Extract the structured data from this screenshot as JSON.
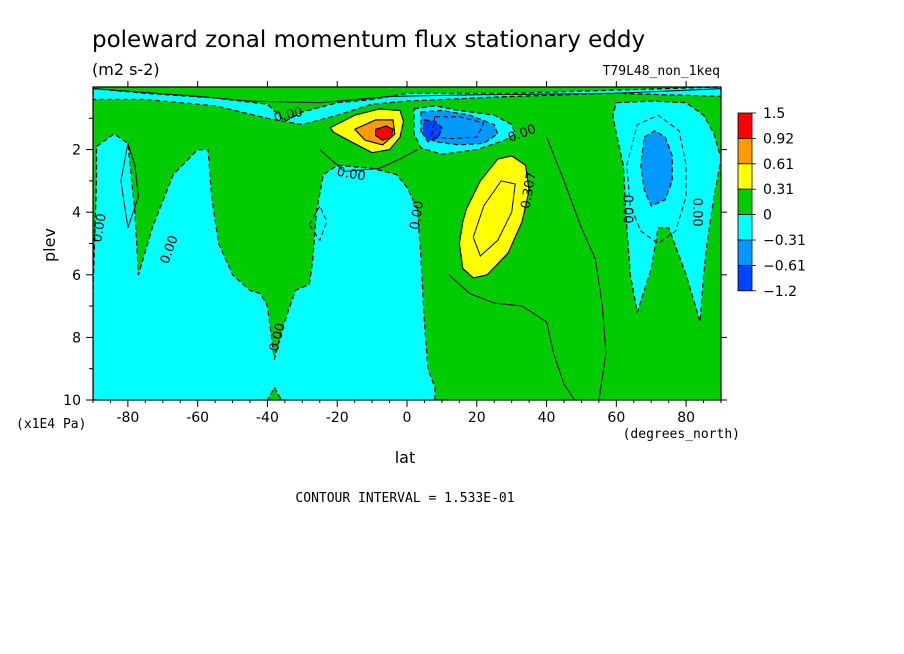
{
  "chart_data": {
    "type": "contour",
    "title": "poleward zonal momentum flux stationary eddy",
    "units": "(m2 s-2)",
    "experiment": "T79L48_non_1keq",
    "xlabel": "lat",
    "xunits": "(degrees_north)",
    "ylabel": "plev",
    "yunits": "(x1E4 Pa)",
    "xlim": [
      -90,
      90
    ],
    "ylim": [
      0,
      10
    ],
    "y_inverted": true,
    "x_ticks": [
      -80,
      -60,
      -40,
      -20,
      0,
      20,
      40,
      60,
      80
    ],
    "x_tick_labels": [
      "-80",
      "-60",
      "-40",
      "-20",
      "0",
      "20",
      "40",
      "60",
      "80"
    ],
    "y_ticks": [
      2,
      4,
      6,
      8,
      10
    ],
    "y_tick_labels": [
      "2",
      "4",
      "6",
      "8",
      "10"
    ],
    "contour_interval_text": "CONTOUR INTERVAL = 1.533E-01",
    "colorbar": {
      "labels": [
        "1.5",
        "0.92",
        "0.61",
        "0.31",
        "0",
        "−0.31",
        "−0.61",
        "−1.2"
      ],
      "colors": [
        "#ff0000",
        "#ff9900",
        "#ffff00",
        "#00cc00",
        "#00ffff",
        "#0099ff",
        "#0044ff"
      ]
    },
    "contour_labels": [
      {
        "text": "0.00",
        "lat": -34,
        "p": 0.9,
        "rot": -12
      },
      {
        "text": "0.00",
        "lat": -16,
        "p": 2.8,
        "rot": 10
      },
      {
        "text": "0.00",
        "lat": -68,
        "p": 5.2,
        "rot": -70
      },
      {
        "text": "0.00",
        "lat": -88,
        "p": 4.5,
        "rot": -80
      },
      {
        "text": "0.00",
        "lat": -37,
        "p": 8.0,
        "rot": -75
      },
      {
        "text": "0.00",
        "lat": 3,
        "p": 4.1,
        "rot": -80
      },
      {
        "text": "0.00",
        "lat": 33,
        "p": 1.5,
        "rot": -20
      },
      {
        "text": "0.00",
        "lat": 63,
        "p": 3.9,
        "rot": 90
      },
      {
        "text": "0.00",
        "lat": 83,
        "p": 4.0,
        "rot": 90
      },
      {
        "text": "0.307",
        "lat": 35,
        "p": 3.3,
        "rot": -80
      }
    ],
    "color_regions": [
      {
        "level": "negative",
        "color": "#00ffff",
        "polygon": [
          [
            -90,
            0.05
          ],
          [
            -75,
            0.2
          ],
          [
            -55,
            0.35
          ],
          [
            -40,
            0.55
          ],
          [
            -35,
            1.1
          ],
          [
            -30,
            0.8
          ],
          [
            -20,
            0.5
          ],
          [
            -10,
            0.4
          ],
          [
            0,
            0.2
          ],
          [
            30,
            0.2
          ],
          [
            60,
            0.1
          ],
          [
            90,
            0.0
          ],
          [
            90,
            0.3
          ],
          [
            60,
            0.2
          ],
          [
            30,
            0.3
          ],
          [
            0,
            0.45
          ],
          [
            -10,
            0.55
          ],
          [
            -20,
            0.9
          ],
          [
            -30,
            1.2
          ],
          [
            -40,
            1.0
          ],
          [
            -55,
            0.6
          ],
          [
            -75,
            0.4
          ],
          [
            -90,
            0.4
          ]
        ]
      },
      {
        "level": "negative",
        "color": "#00ffff",
        "polygon": [
          [
            -89,
            1.9
          ],
          [
            -84,
            1.5
          ],
          [
            -80,
            1.8
          ],
          [
            -78,
            4.0
          ],
          [
            -77,
            6.0
          ],
          [
            -73,
            4.5
          ],
          [
            -67,
            2.8
          ],
          [
            -60,
            2.0
          ],
          [
            -57,
            2.0
          ],
          [
            -56,
            3.5
          ],
          [
            -54,
            5.0
          ],
          [
            -50,
            6.0
          ],
          [
            -45,
            6.5
          ],
          [
            -42,
            6.6
          ],
          [
            -40,
            7.0
          ],
          [
            -38,
            8.7
          ],
          [
            -36,
            7.8
          ],
          [
            -32,
            6.5
          ],
          [
            -28,
            6.3
          ],
          [
            -27,
            5.5
          ],
          [
            -26,
            4.0
          ],
          [
            -24,
            2.8
          ],
          [
            -20,
            2.5
          ],
          [
            -10,
            2.6
          ],
          [
            -3,
            2.8
          ],
          [
            0,
            3.2
          ],
          [
            3,
            3.9
          ],
          [
            4,
            5.5
          ],
          [
            5,
            7.5
          ],
          [
            6,
            9.0
          ],
          [
            8,
            9.6
          ],
          [
            8,
            10
          ],
          [
            -36,
            10
          ],
          [
            -38,
            9.6
          ],
          [
            -40,
            10
          ],
          [
            -90,
            10
          ],
          [
            -90,
            6.5
          ],
          [
            -89,
            3.0
          ]
        ]
      },
      {
        "level": "negative",
        "color": "#00ffff",
        "polygon": [
          [
            2,
            0.7
          ],
          [
            8,
            0.6
          ],
          [
            15,
            0.75
          ],
          [
            25,
            0.9
          ],
          [
            30,
            1.2
          ],
          [
            31,
            1.5
          ],
          [
            28,
            1.7
          ],
          [
            20,
            2.0
          ],
          [
            10,
            2.15
          ],
          [
            4,
            1.95
          ],
          [
            2,
            1.5
          ]
        ]
      },
      {
        "level": "negative",
        "color": "#00ffff",
        "polygon": [
          [
            60,
            0.5
          ],
          [
            70,
            0.45
          ],
          [
            80,
            0.5
          ],
          [
            85,
            0.9
          ],
          [
            88,
            1.5
          ],
          [
            90,
            2.3
          ],
          [
            88,
            3.5
          ],
          [
            86,
            5.0
          ],
          [
            85,
            6.0
          ],
          [
            84,
            7.5
          ],
          [
            80,
            6.0
          ],
          [
            75,
            4.5
          ],
          [
            72,
            4.5
          ],
          [
            70,
            5.8
          ],
          [
            66,
            7.2
          ],
          [
            64,
            6.0
          ],
          [
            63,
            4.5
          ],
          [
            62,
            2.5
          ],
          [
            60,
            1.5
          ],
          [
            59,
            0.9
          ]
        ]
      },
      {
        "level": "negative",
        "color": "#0099ff",
        "polygon": [
          [
            4,
            0.8
          ],
          [
            10,
            0.75
          ],
          [
            18,
            0.9
          ],
          [
            25,
            1.2
          ],
          [
            26,
            1.5
          ],
          [
            22,
            1.8
          ],
          [
            15,
            1.85
          ],
          [
            8,
            1.75
          ],
          [
            4,
            1.45
          ]
        ]
      },
      {
        "level": "negative",
        "color": "#0099ff",
        "polygon": [
          [
            68,
            1.6
          ],
          [
            71,
            1.4
          ],
          [
            74,
            1.6
          ],
          [
            76,
            2.2
          ],
          [
            76,
            3.0
          ],
          [
            74,
            3.6
          ],
          [
            70,
            3.8
          ],
          [
            68,
            3.3
          ],
          [
            67,
            2.5
          ]
        ]
      },
      {
        "level": "negative",
        "color": "#0044ff",
        "polygon": [
          [
            5,
            1.05
          ],
          [
            8,
            1.1
          ],
          [
            10,
            1.3
          ],
          [
            9,
            1.6
          ],
          [
            6,
            1.75
          ],
          [
            4.5,
            1.5
          ]
        ]
      },
      {
        "level": "positive",
        "color": "#ffff00",
        "polygon": [
          [
            -22,
            1.3
          ],
          [
            -15,
            0.9
          ],
          [
            -8,
            0.7
          ],
          [
            -2,
            0.75
          ],
          [
            -1,
            1.1
          ],
          [
            -2,
            1.6
          ],
          [
            -5,
            2.0
          ],
          [
            -10,
            2.1
          ],
          [
            -16,
            1.75
          ],
          [
            -21,
            1.45
          ]
        ]
      },
      {
        "level": "positive",
        "color": "#ff9900",
        "polygon": [
          [
            -15,
            1.35
          ],
          [
            -9,
            1.05
          ],
          [
            -4,
            1.05
          ],
          [
            -3.5,
            1.5
          ],
          [
            -7,
            1.85
          ],
          [
            -12,
            1.7
          ]
        ]
      },
      {
        "level": "positive",
        "color": "#ff0000",
        "polygon": [
          [
            -9,
            1.35
          ],
          [
            -6,
            1.25
          ],
          [
            -4,
            1.35
          ],
          [
            -4.5,
            1.6
          ],
          [
            -7,
            1.7
          ],
          [
            -9,
            1.55
          ]
        ]
      },
      {
        "level": "positive",
        "color": "#ffff00",
        "polygon": [
          [
            17,
            3.9
          ],
          [
            21,
            3.0
          ],
          [
            26,
            2.3
          ],
          [
            30,
            2.2
          ],
          [
            34,
            2.5
          ],
          [
            35,
            3.3
          ],
          [
            33,
            4.3
          ],
          [
            29,
            5.3
          ],
          [
            23,
            6.0
          ],
          [
            19,
            6.1
          ],
          [
            16,
            5.8
          ],
          [
            15,
            5.0
          ],
          [
            16,
            4.3
          ]
        ]
      }
    ],
    "contour_lines": [
      {
        "style": "dashed",
        "points": [
          [
            -28,
            4.4
          ],
          [
            -25,
            3.8
          ],
          [
            -23,
            4.3
          ],
          [
            -25,
            4.9
          ],
          [
            -28,
            4.4
          ]
        ]
      },
      {
        "style": "dashed",
        "points": [
          [
            63,
            2.5
          ],
          [
            66,
            1.2
          ],
          [
            72,
            0.9
          ],
          [
            78,
            1.4
          ],
          [
            80,
            2.5
          ],
          [
            80,
            3.5
          ],
          [
            77,
            4.6
          ],
          [
            72,
            5.0
          ],
          [
            67,
            4.6
          ],
          [
            64,
            3.8
          ],
          [
            63,
            2.5
          ]
        ]
      },
      {
        "style": "dashed",
        "points": [
          [
            8,
            0.95
          ],
          [
            15,
            0.95
          ],
          [
            22,
            1.15
          ],
          [
            20,
            1.6
          ],
          [
            13,
            1.65
          ],
          [
            7,
            1.6
          ],
          [
            8,
            0.95
          ]
        ]
      },
      {
        "style": "solid",
        "points": [
          [
            19,
            4.8
          ],
          [
            22,
            3.8
          ],
          [
            27,
            3.0
          ],
          [
            31,
            3.1
          ],
          [
            30,
            4.0
          ],
          [
            26,
            4.9
          ],
          [
            21,
            5.4
          ],
          [
            19,
            4.8
          ]
        ]
      },
      {
        "style": "solid",
        "points": [
          [
            12,
            6.0
          ],
          [
            18,
            6.6
          ],
          [
            25,
            6.9
          ],
          [
            33,
            7.0
          ],
          [
            40,
            7.5
          ],
          [
            42,
            8.5
          ],
          [
            45,
            9.5
          ],
          [
            48,
            10
          ]
        ]
      },
      {
        "style": "solid",
        "points": [
          [
            40,
            1.6
          ],
          [
            45,
            3.0
          ],
          [
            50,
            4.5
          ],
          [
            54,
            5.5
          ],
          [
            56,
            7.0
          ],
          [
            57,
            8.5
          ],
          [
            55,
            10
          ]
        ]
      },
      {
        "style": "solid",
        "points": [
          [
            -80,
            1.8
          ],
          [
            -82,
            3.0
          ],
          [
            -80,
            4.5
          ],
          [
            -77,
            3.5
          ],
          [
            -78,
            2.5
          ],
          [
            -80,
            1.8
          ]
        ]
      },
      {
        "style": "solid",
        "points": [
          [
            -25,
            2.0
          ],
          [
            -18,
            2.7
          ],
          [
            -8,
            2.6
          ],
          [
            -2,
            2.3
          ],
          [
            3,
            2.0
          ]
        ]
      },
      {
        "style": "solid",
        "points": [
          [
            -90,
            0.05
          ],
          [
            -60,
            0.3
          ],
          [
            -45,
            0.45
          ],
          [
            -25,
            0.5
          ],
          [
            -5,
            0.3
          ],
          [
            20,
            0.25
          ],
          [
            60,
            0.2
          ],
          [
            90,
            0.05
          ]
        ]
      }
    ]
  }
}
